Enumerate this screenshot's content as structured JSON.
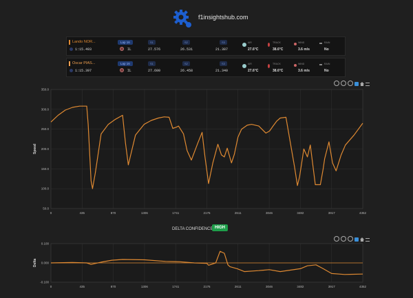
{
  "site": {
    "name": "f1insightshub.com"
  },
  "drivers": [
    {
      "name": "Lando NOR...",
      "lap_badge": "Lap 16",
      "lap_time": "1:15.493",
      "tyre_life": "1L",
      "sectors": [
        {
          "label": "S1",
          "value": "27.576"
        },
        {
          "label": "S2",
          "value": "26.531"
        },
        {
          "label": "S3",
          "value": "21.387"
        }
      ],
      "air_label": "AIR",
      "air_temp": "27.6°C",
      "track_label": "TRACK",
      "track_temp": "38.6°C",
      "wind_label": "WIND",
      "wind": "3.6 m/s",
      "rain_label": "RAIN",
      "rain": "No",
      "color": "#e08a32"
    },
    {
      "name": "Oscar PIAS...",
      "lap_badge": "Lap 16",
      "lap_time": "1:15.397",
      "tyre_life": "1L",
      "sectors": [
        {
          "label": "S1",
          "value": "27.600"
        },
        {
          "label": "S2",
          "value": "26.458"
        },
        {
          "label": "S3",
          "value": "21.340"
        }
      ],
      "air_label": "AIR",
      "air_temp": "27.6°C",
      "track_label": "TRACK",
      "track_temp": "38.6°C",
      "wind_label": "WIND",
      "wind": "3.6 m/s",
      "rain_label": "RAIN",
      "rain": "No",
      "color": "#f0a050"
    }
  ],
  "delta_confidence": {
    "label": "DELTA CONFIDENCE:",
    "value": "HIGH",
    "color": "#1e9e4a"
  },
  "toolbar_icons": [
    "zoom-in-icon",
    "zoom-out-icon",
    "magnify-icon",
    "pan-hand-icon",
    "home-icon",
    "menu-icon"
  ],
  "chart_data": [
    {
      "type": "line",
      "ylabel": "Speed",
      "xlabel": "",
      "xlim": [
        0,
        4352
      ],
      "ylim": [
        50,
        350
      ],
      "x_ticks": [
        "0",
        "435",
        "870",
        "1306",
        "1741",
        "2176",
        "2611",
        "3046",
        "3482",
        "3917",
        "4352"
      ],
      "y_ticks": [
        "50.0",
        "100.0",
        "150.0",
        "200.0",
        "250.0",
        "300.0",
        "350.0"
      ],
      "series": [
        {
          "color": "#e08a32",
          "x": [
            0,
            100,
            200,
            300,
            400,
            500,
            520,
            560,
            580,
            620,
            700,
            800,
            900,
            1000,
            1040,
            1080,
            1180,
            1300,
            1400,
            1500,
            1580,
            1650,
            1700,
            1750,
            1780,
            1850,
            1900,
            1960,
            2050,
            2110,
            2150,
            2200,
            2260,
            2330,
            2380,
            2420,
            2460,
            2520,
            2560,
            2610,
            2660,
            2740,
            2800,
            2900,
            3000,
            3050,
            3100,
            3150,
            3200,
            3280,
            3400,
            3440,
            3470,
            3530,
            3580,
            3620,
            3690,
            3760,
            3800,
            3820,
            3880,
            3930,
            3980,
            4050,
            4110,
            4230,
            4352
          ],
          "y": [
            268,
            285,
            298,
            305,
            308,
            308,
            262,
            120,
            100,
            140,
            238,
            262,
            275,
            285,
            215,
            160,
            235,
            262,
            272,
            278,
            281,
            280,
            252,
            255,
            258,
            238,
            196,
            172,
            215,
            242,
            180,
            113,
            165,
            212,
            185,
            180,
            202,
            165,
            187,
            230,
            250,
            260,
            262,
            258,
            240,
            245,
            258,
            270,
            278,
            280,
            155,
            108,
            130,
            200,
            180,
            210,
            110,
            110,
            150,
            175,
            218,
            165,
            145,
            185,
            210,
            235,
            265
          ]
        }
      ]
    },
    {
      "type": "line",
      "ylabel": "Delta",
      "xlim": [
        0,
        4352
      ],
      "ylim": [
        -0.1,
        0.1
      ],
      "x_ticks": [
        "0",
        "435",
        "870",
        "1306",
        "1741",
        "2176",
        "2611",
        "3046",
        "3482",
        "3917",
        "4352"
      ],
      "y_ticks": [
        "-0.100",
        "0.000",
        "0.100"
      ],
      "reference_y": 0,
      "series": [
        {
          "color": "#e08a32",
          "x": [
            0,
            300,
            500,
            560,
            700,
            850,
            1000,
            1306,
            1600,
            1800,
            2000,
            2176,
            2200,
            2300,
            2360,
            2420,
            2470,
            2500,
            2600,
            2700,
            2900,
            3046,
            3200,
            3482,
            3580,
            3700,
            3800,
            3917,
            4100,
            4352
          ],
          "y": [
            0.0,
            0.002,
            0.0,
            -0.008,
            0.004,
            0.014,
            0.018,
            0.016,
            0.008,
            0.006,
            0.0,
            -0.002,
            -0.012,
            0.0,
            0.06,
            0.05,
            -0.01,
            -0.02,
            -0.03,
            -0.045,
            -0.04,
            -0.035,
            -0.045,
            -0.03,
            -0.015,
            -0.01,
            -0.03,
            -0.055,
            -0.06,
            -0.058
          ]
        }
      ]
    }
  ]
}
